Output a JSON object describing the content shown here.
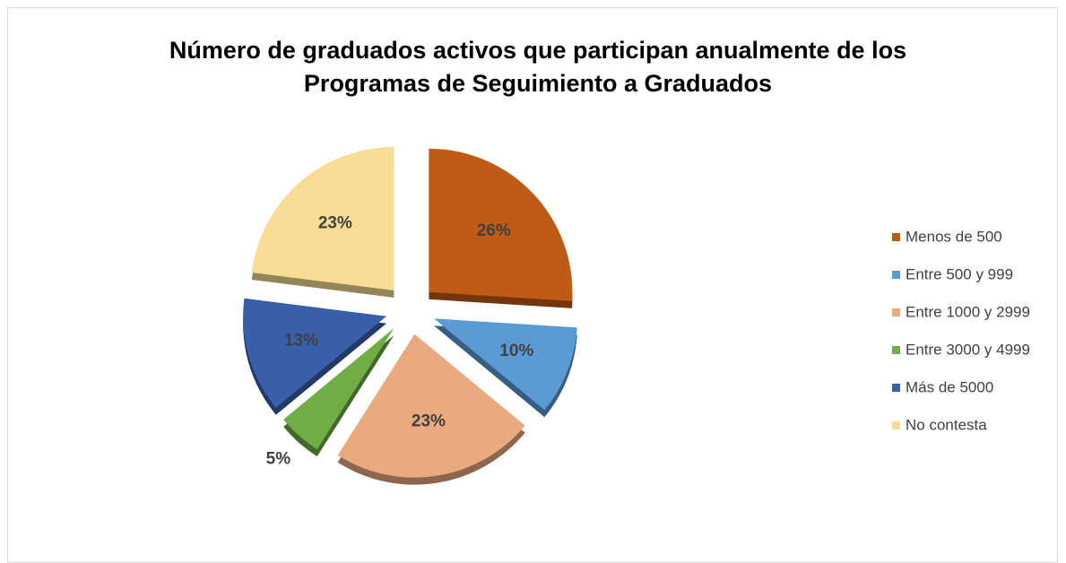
{
  "chart_data": {
    "type": "pie",
    "title": "Número de graduados activos que participan anualmente de los Programas de Seguimiento a Graduados",
    "categories": [
      "Menos de 500",
      "Entre 500 y 999",
      "Entre 1000 y 2999",
      "Entre 3000 y 4999",
      "Más de 5000",
      "No contesta"
    ],
    "values": [
      26,
      10,
      23,
      5,
      13,
      23
    ],
    "value_labels": [
      "26%",
      "10%",
      "23%",
      "5%",
      "13%",
      "23%"
    ],
    "colors": [
      "#c05a17",
      "#5b9bd5",
      "#eaaa80",
      "#70ad47",
      "#3a5faa",
      "#f7dc96"
    ],
    "legend": "right"
  }
}
